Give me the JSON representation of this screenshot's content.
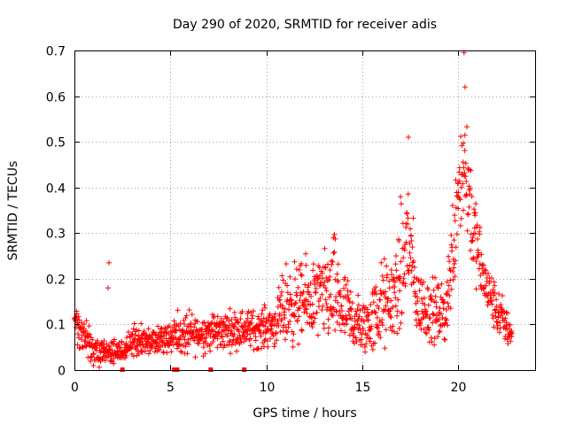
{
  "chart_data": {
    "type": "scatter",
    "title": "Day 290 of 2020, SRMTID for receiver adis",
    "xlabel": "GPS time / hours",
    "ylabel": "SRMTID / TECUs",
    "xlim": [
      0,
      24
    ],
    "ylim": [
      0,
      0.7
    ],
    "x_ticks": [
      0,
      5,
      10,
      15,
      20
    ],
    "x_tick_labels": [
      "0",
      "5",
      "10",
      "15",
      "20"
    ],
    "y_ticks": [
      0,
      0.1,
      0.2,
      0.3,
      0.4,
      0.5,
      0.6,
      0.7
    ],
    "y_tick_labels": [
      "0",
      "0.1",
      "0.2",
      "0.3",
      "0.4",
      "0.5",
      "0.6",
      "0.7"
    ],
    "grid": true,
    "marker": "+",
    "color": "#ff0000",
    "data_range_hours": [
      0,
      22.8
    ],
    "zero_markers_x": [
      2.5,
      5.2,
      5.35,
      7.1,
      8.85
    ],
    "outliers": [
      {
        "x": 1.8,
        "y": 0.235
      },
      {
        "x": 1.75,
        "y": 0.18
      },
      {
        "x": 17.4,
        "y": 0.51
      },
      {
        "x": 20.3,
        "y": 0.695
      },
      {
        "x": 20.35,
        "y": 0.62
      }
    ],
    "envelope": [
      {
        "x": 0.0,
        "base": 0.1,
        "spread": 0.04
      },
      {
        "x": 0.5,
        "base": 0.075,
        "spread": 0.04
      },
      {
        "x": 1.0,
        "base": 0.04,
        "spread": 0.025
      },
      {
        "x": 2.0,
        "base": 0.035,
        "spread": 0.03
      },
      {
        "x": 2.6,
        "base": 0.04,
        "spread": 0.02
      },
      {
        "x": 3.0,
        "base": 0.065,
        "spread": 0.03
      },
      {
        "x": 4.0,
        "base": 0.06,
        "spread": 0.035
      },
      {
        "x": 5.0,
        "base": 0.08,
        "spread": 0.04
      },
      {
        "x": 5.5,
        "base": 0.075,
        "spread": 0.05
      },
      {
        "x": 6.5,
        "base": 0.08,
        "spread": 0.04
      },
      {
        "x": 7.5,
        "base": 0.085,
        "spread": 0.04
      },
      {
        "x": 8.5,
        "base": 0.09,
        "spread": 0.04
      },
      {
        "x": 9.5,
        "base": 0.09,
        "spread": 0.04
      },
      {
        "x": 10.5,
        "base": 0.1,
        "spread": 0.045
      },
      {
        "x": 11.0,
        "base": 0.14,
        "spread": 0.09
      },
      {
        "x": 12.0,
        "base": 0.15,
        "spread": 0.08
      },
      {
        "x": 13.0,
        "base": 0.16,
        "spread": 0.09
      },
      {
        "x": 13.5,
        "base": 0.17,
        "spread": 0.12
      },
      {
        "x": 14.0,
        "base": 0.13,
        "spread": 0.08
      },
      {
        "x": 15.0,
        "base": 0.09,
        "spread": 0.06
      },
      {
        "x": 15.5,
        "base": 0.11,
        "spread": 0.07
      },
      {
        "x": 16.0,
        "base": 0.14,
        "spread": 0.1
      },
      {
        "x": 16.5,
        "base": 0.15,
        "spread": 0.08
      },
      {
        "x": 17.0,
        "base": 0.2,
        "spread": 0.14
      },
      {
        "x": 17.4,
        "base": 0.3,
        "spread": 0.16
      },
      {
        "x": 17.8,
        "base": 0.15,
        "spread": 0.07
      },
      {
        "x": 18.5,
        "base": 0.13,
        "spread": 0.07
      },
      {
        "x": 19.3,
        "base": 0.12,
        "spread": 0.06
      },
      {
        "x": 19.7,
        "base": 0.25,
        "spread": 0.12
      },
      {
        "x": 20.0,
        "base": 0.42,
        "spread": 0.12
      },
      {
        "x": 20.4,
        "base": 0.45,
        "spread": 0.16
      },
      {
        "x": 20.8,
        "base": 0.3,
        "spread": 0.1
      },
      {
        "x": 21.3,
        "base": 0.2,
        "spread": 0.06
      },
      {
        "x": 22.0,
        "base": 0.13,
        "spread": 0.05
      },
      {
        "x": 22.8,
        "base": 0.08,
        "spread": 0.04
      }
    ]
  }
}
